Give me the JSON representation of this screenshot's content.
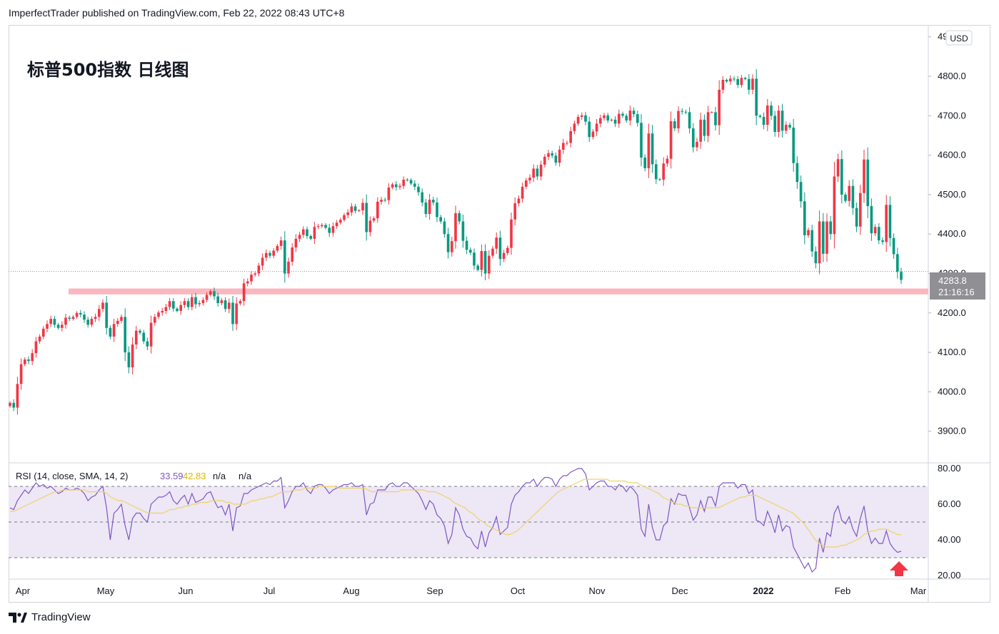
{
  "header": {
    "publisher_line": "ImperfectTrader published on TradingView.com, Feb 22, 2022 08:43 UTC+8"
  },
  "chart_title": "标普500指数 日线图",
  "footer": {
    "brand": "TradingView"
  },
  "colors": {
    "up": "#f23645",
    "down": "#089981",
    "support_band": "#f9b8c0",
    "rsi_line": "#7e57c2",
    "rsi_ma": "#f0d264",
    "rsi_band": "#ede7f6",
    "price_label_bg": "#8f8f94",
    "grid_line": "#d1d4dc",
    "arrow": "#f23645"
  },
  "chart_data": [
    {
      "type": "candlestick",
      "currency": "USD",
      "price_axis_ticks": [
        "4900.0",
        "4800.0",
        "4700.0",
        "4600.0",
        "4500.0",
        "4400.0",
        "4300.0",
        "4200.0",
        "4100.0",
        "4000.0",
        "3900.0"
      ],
      "ylim": [
        3865,
        4920
      ],
      "time_axis_labels": [
        "Apr",
        "May",
        "Jun",
        "Jul",
        "Aug",
        "Sep",
        "Oct",
        "Nov",
        "Dec",
        "2022",
        "Feb",
        "Mar"
      ],
      "last_price_label": "4283.8",
      "countdown_label": "21:16:16",
      "support_level_range": [
        4247,
        4262
      ],
      "close_series": [
        3972,
        3960,
        4020,
        4070,
        4082,
        4078,
        4098,
        4128,
        4140,
        4160,
        4172,
        4185,
        4170,
        4162,
        4170,
        4188,
        4185,
        4190,
        4200,
        4196,
        4183,
        4170,
        4185,
        4190,
        4210,
        4226,
        4162,
        4140,
        4172,
        4180,
        4190,
        4100,
        4062,
        4120,
        4155,
        4150,
        4128,
        4115,
        4175,
        4190,
        4201,
        4205,
        4215,
        4230,
        4211,
        4205,
        4220,
        4230,
        4215,
        4240,
        4222,
        4225,
        4233,
        4246,
        4255,
        4242,
        4225,
        4232,
        4210,
        4226,
        4172,
        4224,
        4230,
        4275,
        4280,
        4297,
        4300,
        4320,
        4340,
        4352,
        4345,
        4358,
        4370,
        4384,
        4300,
        4330,
        4366,
        4388,
        4398,
        4412,
        4395,
        4388,
        4418,
        4420,
        4423,
        4416,
        4403,
        4420,
        4429,
        4436,
        4448,
        4455,
        4470,
        4459,
        4460,
        4479,
        4405,
        4434,
        4440,
        4482,
        4487,
        4486,
        4518,
        4526,
        4519,
        4522,
        4538,
        4537,
        4528,
        4520,
        4506,
        4480,
        4451,
        4487,
        4480,
        4443,
        4432,
        4400,
        4354,
        4382,
        4453,
        4432,
        4383,
        4360,
        4353,
        4320,
        4309,
        4357,
        4300,
        4345,
        4363,
        4391,
        4337,
        4352,
        4365,
        4437,
        4478,
        4490,
        4520,
        4536,
        4543,
        4566,
        4546,
        4576,
        4596,
        4605,
        4599,
        4581,
        4614,
        4631,
        4631,
        4661,
        4680,
        4697,
        4701,
        4685,
        4646,
        4660,
        4680,
        4694,
        4701,
        4688,
        4690,
        4680,
        4705,
        4700,
        4688,
        4713,
        4704,
        4682,
        4594,
        4567,
        4655,
        4577,
        4539,
        4538,
        4579,
        4591,
        4686,
        4668,
        4712,
        4710,
        4709,
        4668,
        4620,
        4634,
        4690,
        4649,
        4709,
        4709,
        4676,
        4766,
        4791,
        4787,
        4794,
        4793,
        4778,
        4796,
        4793,
        4766,
        4794,
        4700,
        4697,
        4677,
        4726,
        4700,
        4659,
        4713,
        4662,
        4677,
        4670,
        4580,
        4532,
        4483,
        4397,
        4410,
        4356,
        4326,
        4432,
        4350,
        4432,
        4400,
        4546,
        4590,
        4500,
        4484,
        4522,
        4466,
        4419,
        4504,
        4589,
        4471,
        4402,
        4418,
        4384,
        4380,
        4474,
        4390,
        4349,
        4304,
        4283.8
      ]
    },
    {
      "type": "line",
      "title": "RSI (14, close, SMA, 14, 2)",
      "legend_values": [
        "33.59",
        "42.83",
        "n/a",
        "n/a"
      ],
      "axis_ticks": [
        "80.00",
        "60.00",
        "40.00",
        "20.00"
      ],
      "ylim": [
        18,
        82
      ],
      "band_levels": [
        70,
        50,
        30
      ],
      "series": [
        {
          "role": "rsi",
          "values": [
            58,
            57,
            62,
            65,
            68,
            66,
            69,
            72,
            70,
            71,
            69,
            70,
            68,
            66,
            67,
            69,
            68,
            68,
            69,
            68,
            66,
            62,
            64,
            65,
            68,
            70,
            58,
            40,
            55,
            57,
            60,
            48,
            40,
            52,
            55,
            55,
            52,
            50,
            60,
            62,
            64,
            64,
            65,
            67,
            62,
            60,
            63,
            65,
            60,
            66,
            61,
            62,
            63,
            66,
            67,
            62,
            58,
            59,
            54,
            60,
            45,
            58,
            59,
            66,
            66,
            68,
            69,
            70,
            71,
            72,
            71,
            73,
            73,
            75,
            58,
            62,
            67,
            70,
            70,
            72,
            68,
            66,
            70,
            71,
            71,
            69,
            66,
            68,
            69,
            70,
            71,
            71,
            72,
            70,
            70,
            71,
            54,
            60,
            61,
            68,
            68,
            68,
            71,
            72,
            70,
            70,
            72,
            72,
            70,
            68,
            66,
            62,
            57,
            62,
            60,
            54,
            52,
            48,
            38,
            43,
            58,
            54,
            46,
            42,
            41,
            37,
            35,
            45,
            36,
            44,
            47,
            53,
            43,
            45,
            47,
            60,
            65,
            67,
            70,
            72,
            72,
            74,
            70,
            73,
            75,
            75,
            74,
            70,
            74,
            76,
            76,
            78,
            79,
            80,
            80,
            77,
            68,
            70,
            72,
            73,
            73,
            70,
            70,
            68,
            71,
            70,
            67,
            70,
            68,
            65,
            46,
            42,
            60,
            47,
            40,
            40,
            48,
            50,
            63,
            60,
            66,
            65,
            65,
            58,
            51,
            54,
            62,
            56,
            64,
            64,
            59,
            70,
            72,
            72,
            72,
            72,
            69,
            71,
            71,
            66,
            68,
            51,
            50,
            48,
            56,
            51,
            44,
            54,
            45,
            48,
            47,
            36,
            32,
            28,
            24,
            27,
            22,
            24,
            41,
            33,
            44,
            42,
            55,
            59,
            51,
            49,
            53,
            46,
            42,
            52,
            59,
            45,
            38,
            41,
            38,
            38,
            45,
            38,
            35,
            33,
            33.59
          ]
        },
        {
          "role": "rsi_ma",
          "values": [
            56,
            56,
            57,
            58,
            59,
            60,
            61,
            62,
            63,
            64,
            65,
            66,
            67,
            67,
            68,
            68,
            68,
            68,
            68,
            68,
            68,
            67,
            67,
            67,
            67,
            67,
            66,
            64,
            63,
            62,
            62,
            61,
            60,
            59,
            58,
            57,
            56,
            55,
            55,
            55,
            55,
            55,
            56,
            57,
            57,
            58,
            58,
            59,
            59,
            60,
            60,
            61,
            61,
            61,
            62,
            62,
            62,
            62,
            61,
            61,
            60,
            60,
            60,
            60,
            61,
            62,
            62,
            63,
            63,
            64,
            64,
            65,
            66,
            67,
            67,
            67,
            68,
            68,
            68,
            69,
            69,
            69,
            69,
            70,
            70,
            70,
            70,
            70,
            69,
            69,
            69,
            69,
            69,
            69,
            69,
            69,
            68,
            67,
            67,
            67,
            67,
            67,
            67,
            67,
            67,
            68,
            68,
            68,
            68,
            68,
            68,
            68,
            67,
            67,
            67,
            66,
            65,
            64,
            63,
            61,
            60,
            59,
            58,
            56,
            55,
            53,
            51,
            50,
            48,
            47,
            46,
            45,
            44,
            43,
            43,
            44,
            45,
            47,
            49,
            51,
            53,
            55,
            57,
            59,
            61,
            63,
            65,
            67,
            68,
            69,
            70,
            71,
            72,
            73,
            74,
            74,
            74,
            74,
            74,
            74,
            74,
            73,
            73,
            73,
            73,
            73,
            72,
            72,
            72,
            71,
            70,
            69,
            68,
            67,
            66,
            64,
            63,
            62,
            61,
            60,
            60,
            59,
            59,
            58,
            58,
            58,
            58,
            58,
            58,
            58,
            58,
            59,
            60,
            61,
            62,
            63,
            64,
            64,
            65,
            65,
            65,
            64,
            63,
            62,
            61,
            60,
            59,
            58,
            57,
            56,
            55,
            53,
            51,
            49,
            46,
            43,
            40,
            38,
            37,
            36,
            36,
            36,
            36,
            37,
            37,
            38,
            39,
            40,
            41,
            43,
            44,
            45,
            45,
            46,
            46,
            46,
            45,
            44,
            43,
            42.83
          ]
        }
      ]
    }
  ]
}
